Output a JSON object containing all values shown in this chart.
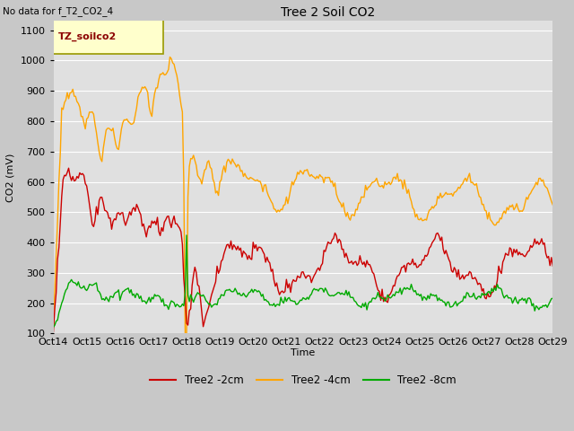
{
  "title": "Tree 2 Soil CO2",
  "no_data_text": "No data for f_T2_CO2_4",
  "legend_box_text": "TZ_soilco2",
  "ylabel": "CO2 (mV)",
  "xlabel": "Time",
  "ylim": [
    100,
    1130
  ],
  "xlim": [
    0,
    360
  ],
  "bg_color": "#e0e0e0",
  "grid_color": "#ffffff",
  "fig_color": "#c8c8c8",
  "x_tick_labels": [
    "Oct 14",
    "Oct 15",
    "Oct 16",
    "Oct 17",
    "Oct 18",
    "Oct 19",
    "Oct 20",
    "Oct 21",
    "Oct 22",
    "Oct 23",
    "Oct 24",
    "Oct 25",
    "Oct 26",
    "Oct 27",
    "Oct 28",
    "Oct 29"
  ],
  "x_tick_positions": [
    0,
    24,
    48,
    72,
    96,
    120,
    144,
    168,
    192,
    216,
    240,
    264,
    288,
    312,
    336,
    360
  ],
  "yticks": [
    100,
    200,
    300,
    400,
    500,
    600,
    700,
    800,
    900,
    1000,
    1100
  ],
  "series": {
    "red": {
      "label": "Tree2 -2cm",
      "color": "#cc0000",
      "linewidth": 1.0
    },
    "orange": {
      "label": "Tree2 -4cm",
      "color": "#ffa500",
      "linewidth": 1.0
    },
    "green": {
      "label": "Tree2 -8cm",
      "color": "#00aa00",
      "linewidth": 1.0
    }
  }
}
